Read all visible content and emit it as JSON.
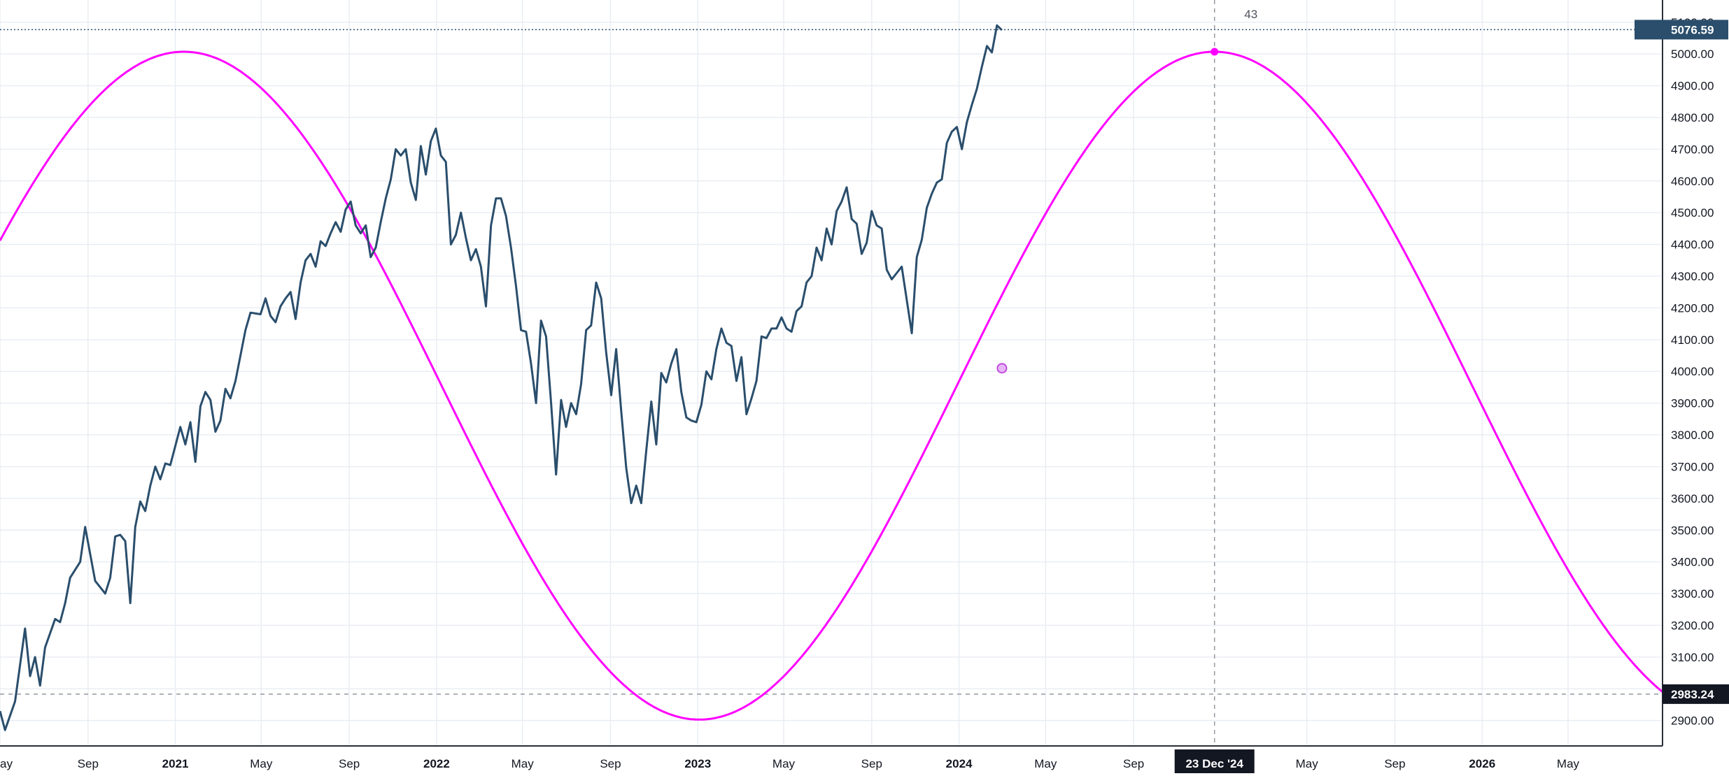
{
  "chart_data": {
    "type": "line",
    "x_axis_labels": [
      "ay",
      "Sep",
      "2021",
      "May",
      "Sep",
      "2022",
      "May",
      "Sep",
      "2023",
      "May",
      "Sep",
      "2024",
      "May",
      "Sep",
      "23 Dec '24",
      "May",
      "Sep",
      "2026",
      "May"
    ],
    "y_ticks": [
      "2900.00",
      "3000.00",
      "3100.00",
      "3200.00",
      "3300.00",
      "3400.00",
      "3500.00",
      "3600.00",
      "3700.00",
      "3800.00",
      "3900.00",
      "4000.00",
      "4100.00",
      "4200.00",
      "4300.00",
      "4400.00",
      "4500.00",
      "4600.00",
      "4700.00",
      "4800.00",
      "4900.00",
      "5000.00",
      "5100.00"
    ],
    "ylim": [
      2820,
      5170
    ],
    "xlim": [
      "2020-05-01",
      "2026-09-10"
    ],
    "price_tag": "5076.59",
    "cursor_price_tag": "2983.24",
    "cursor_date_tag": "23 Dec '24",
    "cursor_date": "2024-12-23",
    "bar_count_label": "43",
    "grid": true,
    "series": [
      {
        "color": "#2a4e6c",
        "points": [
          [
            "2020-05-01",
            2930
          ],
          [
            "2020-05-08",
            2870
          ],
          [
            "2020-05-22",
            2960
          ],
          [
            "2020-06-05",
            3190
          ],
          [
            "2020-06-12",
            3040
          ],
          [
            "2020-06-19",
            3100
          ],
          [
            "2020-06-26",
            3010
          ],
          [
            "2020-07-03",
            3130
          ],
          [
            "2020-07-17",
            3220
          ],
          [
            "2020-07-24",
            3210
          ],
          [
            "2020-07-31",
            3270
          ],
          [
            "2020-08-07",
            3350
          ],
          [
            "2020-08-21",
            3400
          ],
          [
            "2020-08-28",
            3510
          ],
          [
            "2020-09-11",
            3340
          ],
          [
            "2020-09-25",
            3300
          ],
          [
            "2020-10-02",
            3350
          ],
          [
            "2020-10-09",
            3480
          ],
          [
            "2020-10-16",
            3485
          ],
          [
            "2020-10-23",
            3465
          ],
          [
            "2020-10-30",
            3270
          ],
          [
            "2020-11-06",
            3510
          ],
          [
            "2020-11-13",
            3590
          ],
          [
            "2020-11-20",
            3560
          ],
          [
            "2020-11-27",
            3640
          ],
          [
            "2020-12-04",
            3700
          ],
          [
            "2020-12-11",
            3660
          ],
          [
            "2020-12-18",
            3710
          ],
          [
            "2020-12-25",
            3705
          ],
          [
            "2021-01-08",
            3825
          ],
          [
            "2021-01-15",
            3770
          ],
          [
            "2021-01-22",
            3840
          ],
          [
            "2021-01-29",
            3715
          ],
          [
            "2021-02-05",
            3890
          ],
          [
            "2021-02-12",
            3935
          ],
          [
            "2021-02-19",
            3910
          ],
          [
            "2021-02-26",
            3810
          ],
          [
            "2021-03-05",
            3845
          ],
          [
            "2021-03-12",
            3945
          ],
          [
            "2021-03-19",
            3915
          ],
          [
            "2021-03-26",
            3970
          ],
          [
            "2021-04-09",
            4130
          ],
          [
            "2021-04-16",
            4185
          ],
          [
            "2021-04-30",
            4180
          ],
          [
            "2021-05-07",
            4230
          ],
          [
            "2021-05-14",
            4175
          ],
          [
            "2021-05-21",
            4155
          ],
          [
            "2021-05-28",
            4205
          ],
          [
            "2021-06-04",
            4230
          ],
          [
            "2021-06-11",
            4250
          ],
          [
            "2021-06-18",
            4165
          ],
          [
            "2021-06-25",
            4280
          ],
          [
            "2021-07-02",
            4350
          ],
          [
            "2021-07-09",
            4370
          ],
          [
            "2021-07-16",
            4330
          ],
          [
            "2021-07-23",
            4410
          ],
          [
            "2021-07-30",
            4395
          ],
          [
            "2021-08-06",
            4435
          ],
          [
            "2021-08-13",
            4470
          ],
          [
            "2021-08-20",
            4440
          ],
          [
            "2021-08-27",
            4510
          ],
          [
            "2021-09-03",
            4535
          ],
          [
            "2021-09-10",
            4460
          ],
          [
            "2021-09-17",
            4435
          ],
          [
            "2021-09-24",
            4460
          ],
          [
            "2021-10-01",
            4360
          ],
          [
            "2021-10-08",
            4390
          ],
          [
            "2021-10-15",
            4470
          ],
          [
            "2021-10-22",
            4545
          ],
          [
            "2021-10-29",
            4605
          ],
          [
            "2021-11-05",
            4700
          ],
          [
            "2021-11-12",
            4680
          ],
          [
            "2021-11-19",
            4700
          ],
          [
            "2021-11-26",
            4595
          ],
          [
            "2021-12-03",
            4540
          ],
          [
            "2021-12-10",
            4710
          ],
          [
            "2021-12-17",
            4620
          ],
          [
            "2021-12-24",
            4725
          ],
          [
            "2021-12-31",
            4765
          ],
          [
            "2022-01-07",
            4680
          ],
          [
            "2022-01-14",
            4660
          ],
          [
            "2022-01-21",
            4400
          ],
          [
            "2022-01-28",
            4430
          ],
          [
            "2022-02-04",
            4500
          ],
          [
            "2022-02-11",
            4420
          ],
          [
            "2022-02-18",
            4350
          ],
          [
            "2022-02-25",
            4385
          ],
          [
            "2022-03-04",
            4330
          ],
          [
            "2022-03-11",
            4205
          ],
          [
            "2022-03-18",
            4460
          ],
          [
            "2022-03-25",
            4545
          ],
          [
            "2022-04-01",
            4545
          ],
          [
            "2022-04-08",
            4490
          ],
          [
            "2022-04-15",
            4390
          ],
          [
            "2022-04-22",
            4270
          ],
          [
            "2022-04-29",
            4130
          ],
          [
            "2022-05-06",
            4125
          ],
          [
            "2022-05-13",
            4025
          ],
          [
            "2022-05-20",
            3900
          ],
          [
            "2022-05-27",
            4160
          ],
          [
            "2022-06-03",
            4110
          ],
          [
            "2022-06-10",
            3900
          ],
          [
            "2022-06-17",
            3675
          ],
          [
            "2022-06-24",
            3910
          ],
          [
            "2022-07-01",
            3825
          ],
          [
            "2022-07-08",
            3900
          ],
          [
            "2022-07-15",
            3865
          ],
          [
            "2022-07-22",
            3960
          ],
          [
            "2022-07-29",
            4130
          ],
          [
            "2022-08-05",
            4145
          ],
          [
            "2022-08-12",
            4280
          ],
          [
            "2022-08-19",
            4230
          ],
          [
            "2022-08-26",
            4060
          ],
          [
            "2022-09-02",
            3925
          ],
          [
            "2022-09-09",
            4070
          ],
          [
            "2022-09-16",
            3875
          ],
          [
            "2022-09-23",
            3695
          ],
          [
            "2022-09-30",
            3585
          ],
          [
            "2022-10-07",
            3640
          ],
          [
            "2022-10-14",
            3585
          ],
          [
            "2022-10-21",
            3750
          ],
          [
            "2022-10-28",
            3905
          ],
          [
            "2022-11-04",
            3770
          ],
          [
            "2022-11-11",
            3995
          ],
          [
            "2022-11-18",
            3965
          ],
          [
            "2022-11-25",
            4025
          ],
          [
            "2022-12-02",
            4070
          ],
          [
            "2022-12-09",
            3935
          ],
          [
            "2022-12-16",
            3855
          ],
          [
            "2022-12-23",
            3845
          ],
          [
            "2022-12-30",
            3840
          ],
          [
            "2023-01-06",
            3895
          ],
          [
            "2023-01-13",
            4000
          ],
          [
            "2023-01-20",
            3975
          ],
          [
            "2023-01-27",
            4070
          ],
          [
            "2023-02-03",
            4135
          ],
          [
            "2023-02-10",
            4090
          ],
          [
            "2023-02-17",
            4080
          ],
          [
            "2023-02-24",
            3970
          ],
          [
            "2023-03-03",
            4045
          ],
          [
            "2023-03-10",
            3865
          ],
          [
            "2023-03-17",
            3915
          ],
          [
            "2023-03-24",
            3970
          ],
          [
            "2023-03-31",
            4110
          ],
          [
            "2023-04-07",
            4105
          ],
          [
            "2023-04-14",
            4135
          ],
          [
            "2023-04-21",
            4135
          ],
          [
            "2023-04-28",
            4170
          ],
          [
            "2023-05-05",
            4135
          ],
          [
            "2023-05-12",
            4125
          ],
          [
            "2023-05-19",
            4190
          ],
          [
            "2023-05-26",
            4205
          ],
          [
            "2023-06-02",
            4280
          ],
          [
            "2023-06-09",
            4300
          ],
          [
            "2023-06-16",
            4390
          ],
          [
            "2023-06-23",
            4350
          ],
          [
            "2023-06-30",
            4450
          ],
          [
            "2023-07-07",
            4400
          ],
          [
            "2023-07-14",
            4505
          ],
          [
            "2023-07-21",
            4535
          ],
          [
            "2023-07-28",
            4580
          ],
          [
            "2023-08-04",
            4480
          ],
          [
            "2023-08-11",
            4465
          ],
          [
            "2023-08-18",
            4370
          ],
          [
            "2023-08-25",
            4405
          ],
          [
            "2023-09-01",
            4505
          ],
          [
            "2023-09-08",
            4460
          ],
          [
            "2023-09-15",
            4450
          ],
          [
            "2023-09-22",
            4320
          ],
          [
            "2023-09-29",
            4290
          ],
          [
            "2023-10-06",
            4310
          ],
          [
            "2023-10-13",
            4330
          ],
          [
            "2023-10-20",
            4225
          ],
          [
            "2023-10-27",
            4120
          ],
          [
            "2023-11-03",
            4360
          ],
          [
            "2023-11-10",
            4415
          ],
          [
            "2023-11-17",
            4515
          ],
          [
            "2023-11-24",
            4560
          ],
          [
            "2023-12-01",
            4595
          ],
          [
            "2023-12-08",
            4605
          ],
          [
            "2023-12-15",
            4720
          ],
          [
            "2023-12-22",
            4755
          ],
          [
            "2023-12-29",
            4770
          ],
          [
            "2024-01-05",
            4700
          ],
          [
            "2024-01-12",
            4785
          ],
          [
            "2024-01-19",
            4840
          ],
          [
            "2024-01-26",
            4890
          ],
          [
            "2024-02-02",
            4960
          ],
          [
            "2024-02-09",
            5025
          ],
          [
            "2024-02-16",
            5005
          ],
          [
            "2024-02-23",
            5090
          ],
          [
            "2024-03-01",
            5075
          ]
        ]
      },
      {
        "color": "#ff00ff",
        "wave": {
          "period_days": 1440,
          "peak_date": "2024-12-23",
          "amplitude": 1052,
          "midline": 3955
        },
        "markers": [
          {
            "date": "2024-03-01",
            "value": 4010
          },
          {
            "date": "2024-12-23",
            "value": 5007
          }
        ]
      }
    ]
  }
}
